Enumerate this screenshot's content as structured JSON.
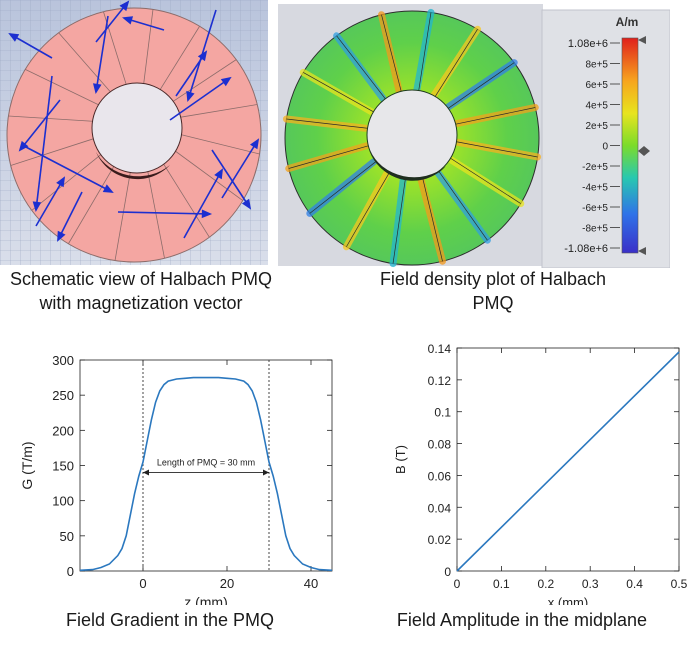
{
  "schematic": {
    "caption_line1": "Schematic view of Halbach PMQ",
    "caption_line2": "with magnetization vector"
  },
  "density": {
    "caption_line1": "Field density plot of Halbach",
    "caption_line2": "PMQ",
    "colorbar": {
      "unit": "A/m",
      "ticks": [
        "1.08e+6",
        "8e+5",
        "6e+5",
        "4e+5",
        "2e+5",
        "0",
        "-2e+5",
        "-4e+5",
        "-6e+5",
        "-8e+5",
        "-1.08e+6"
      ],
      "colors": [
        "#e0201c",
        "#f36a1c",
        "#f7a51f",
        "#f6d51f",
        "#d8e81f",
        "#9ee21f",
        "#55d84a",
        "#2bc49a",
        "#22a9d4",
        "#2f72e8",
        "#3a3ad0"
      ]
    }
  },
  "chart_data": [
    {
      "type": "line",
      "caption": "Field Gradient in the PMQ",
      "xlabel": "z (mm)",
      "ylabel": "G (T/m)",
      "xlim": [
        -15,
        45
      ],
      "ylim": [
        0,
        300
      ],
      "xticks": [
        0,
        20,
        40
      ],
      "yticks": [
        0,
        50,
        100,
        150,
        200,
        250,
        300
      ],
      "annotation": "Length of PMQ = 30 mm",
      "vlines": [
        0,
        30
      ],
      "x": [
        -15,
        -12,
        -10,
        -8,
        -6,
        -5,
        -4,
        -3,
        -2,
        -1,
        0,
        1,
        2,
        3,
        4,
        5,
        6,
        8,
        10,
        12,
        15,
        18,
        20,
        22,
        24,
        25,
        26,
        27,
        28,
        29,
        30,
        31,
        32,
        33,
        34,
        35,
        36,
        38,
        40,
        42,
        45
      ],
      "y": [
        1,
        2,
        5,
        10,
        22,
        32,
        50,
        80,
        110,
        135,
        155,
        185,
        215,
        240,
        256,
        265,
        270,
        273,
        274,
        275,
        275,
        275,
        274,
        273,
        270,
        265,
        256,
        240,
        215,
        185,
        155,
        135,
        110,
        80,
        50,
        32,
        22,
        10,
        5,
        2,
        1
      ]
    },
    {
      "type": "line",
      "caption": "Field Amplitude in the midplane",
      "xlabel": "x (mm)",
      "ylabel": "B (T)",
      "xlim": [
        0,
        0.5
      ],
      "ylim": [
        0,
        0.14
      ],
      "xticks": [
        "0",
        "0.1",
        "0.2",
        "0.3",
        "0.4",
        "0.5"
      ],
      "yticks": [
        "0",
        "0.02",
        "0.04",
        "0.06",
        "0.08",
        "0.1",
        "0.12",
        "0.14"
      ],
      "x": [
        0,
        0.5
      ],
      "y": [
        0,
        0.1375
      ]
    }
  ]
}
